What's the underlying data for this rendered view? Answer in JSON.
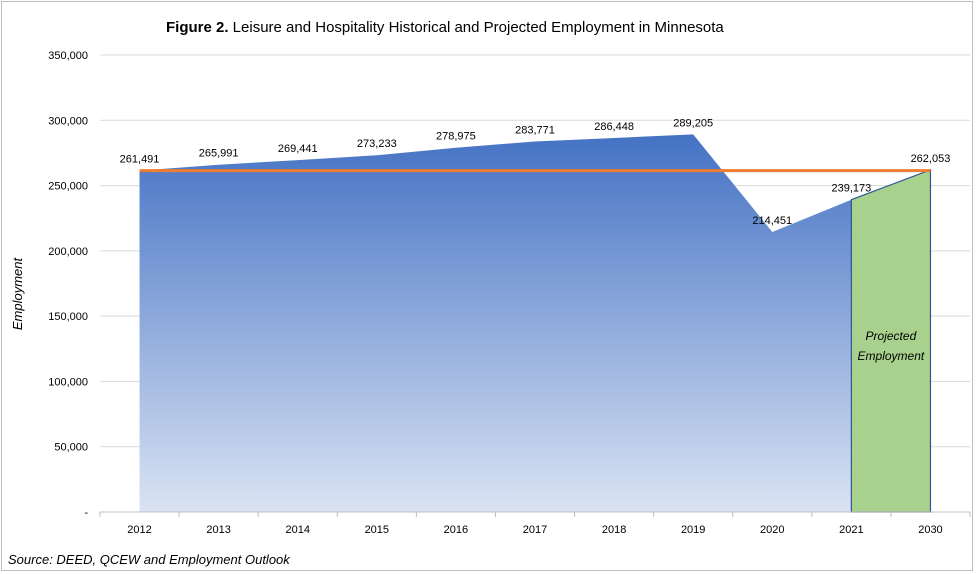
{
  "chart_data": {
    "type": "area",
    "title_bold": "Figure 2.",
    "title_rest": " Leisure and Hospitality Historical and Projected Employment in Minnesota",
    "ylabel": "Employment",
    "xlabel": "",
    "source": "Source: DEED, QCEW and Employment Outlook",
    "categories": [
      "2012",
      "2013",
      "2014",
      "2015",
      "2016",
      "2017",
      "2018",
      "2019",
      "2020",
      "2021",
      "2030"
    ],
    "values": [
      261491,
      265991,
      269441,
      273233,
      278975,
      283771,
      286448,
      289205,
      214451,
      239173,
      262053
    ],
    "value_labels": [
      "261,491",
      "265,991",
      "269,441",
      "273,233",
      "278,975",
      "283,771",
      "286,448",
      "289,205",
      "214,451",
      "239,173",
      "262,053"
    ],
    "ylim": [
      0,
      350000
    ],
    "y_ticks": [
      0,
      50000,
      100000,
      150000,
      200000,
      250000,
      300000,
      350000
    ],
    "y_tick_labels": [
      "-",
      "50,000",
      "100,000",
      "150,000",
      "200,000",
      "250,000",
      "300,000",
      "350,000"
    ],
    "reference_line_value": 261491,
    "projected_range": [
      "2021",
      "2030"
    ],
    "projected_label_line1": "Projected",
    "projected_label_line2": "Employment",
    "grid": true,
    "colors": {
      "area_top": "#4472c4",
      "area_bottom": "#dae3f3",
      "reference_line": "#ed7d31",
      "projected_fill": "#a9d18e",
      "projected_stroke": "#2f5597",
      "grid": "#d9d9d9"
    }
  }
}
